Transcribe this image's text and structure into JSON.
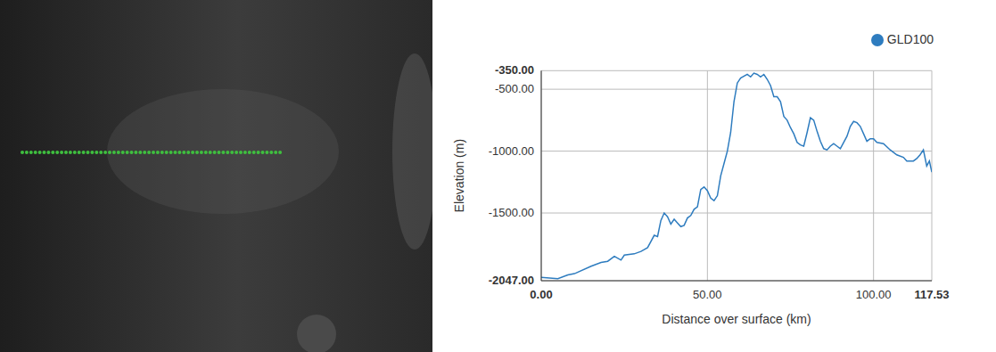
{
  "chart_data": {
    "type": "line",
    "x_label": "Distance over surface (km)",
    "y_label": "Elevation (m)",
    "xlim": [
      0,
      117.53
    ],
    "ylim": [
      -2047,
      -350
    ],
    "xticks": [
      {
        "value": 0,
        "label": "0.00"
      },
      {
        "value": 50,
        "label": "50.00"
      },
      {
        "value": 100,
        "label": "100.00"
      },
      117.53
    ],
    "yticks": [
      {
        "value": -2047,
        "label": "-2047.00"
      },
      {
        "value": -1500,
        "label": "-1500.00"
      },
      {
        "value": -1000,
        "label": "-1000.00"
      },
      {
        "value": -500,
        "label": "-500.00"
      },
      {
        "value": -350,
        "label": "-350.00"
      }
    ],
    "grid": true,
    "legend": "upper right",
    "x": [
      0,
      5,
      8,
      10,
      15,
      18,
      20,
      22,
      24,
      25,
      28,
      30,
      32,
      34,
      35,
      36,
      37,
      38,
      39,
      40,
      41,
      42,
      43,
      44,
      45,
      46,
      47,
      48,
      49,
      50,
      51,
      52,
      53,
      54,
      55,
      56,
      57,
      58,
      59,
      60,
      62,
      63,
      64,
      65,
      66,
      67,
      68,
      69,
      70,
      71,
      72,
      73,
      74,
      75,
      76,
      77,
      78,
      79,
      80,
      81,
      82,
      83,
      84,
      85,
      86,
      87,
      88,
      89,
      90,
      91,
      92,
      93,
      94,
      95,
      96,
      97,
      98,
      99,
      100,
      101,
      103,
      105,
      107,
      109,
      110,
      112,
      113,
      114,
      115,
      116,
      116.8,
      117.53
    ],
    "series": [
      {
        "name": "GLD100",
        "color": "#2e7cbf",
        "marker": "none",
        "values": [
          -2020,
          -2030,
          -2000,
          -1990,
          -1930,
          -1900,
          -1890,
          -1850,
          -1880,
          -1840,
          -1830,
          -1810,
          -1780,
          -1680,
          -1690,
          -1560,
          -1500,
          -1530,
          -1590,
          -1550,
          -1580,
          -1610,
          -1600,
          -1540,
          -1520,
          -1470,
          -1450,
          -1310,
          -1290,
          -1320,
          -1380,
          -1400,
          -1360,
          -1200,
          -1100,
          -1000,
          -850,
          -600,
          -450,
          -410,
          -380,
          -400,
          -370,
          -380,
          -400,
          -380,
          -420,
          -470,
          -560,
          -560,
          -600,
          -720,
          -750,
          -810,
          -860,
          -930,
          -950,
          -960,
          -850,
          -730,
          -750,
          -840,
          -920,
          -980,
          -990,
          -960,
          -940,
          -960,
          -980,
          -930,
          -880,
          -800,
          -760,
          -770,
          -800,
          -860,
          -920,
          -900,
          -900,
          -930,
          -940,
          -990,
          -1030,
          -1050,
          -1080,
          -1080,
          -1060,
          -1030,
          -990,
          -1120,
          -1080,
          -1170
        ]
      }
    ]
  }
}
